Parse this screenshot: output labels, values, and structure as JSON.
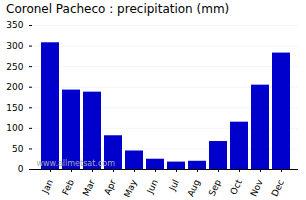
{
  "chart_data": {
    "type": "bar",
    "title": "Coronel Pacheco : precipitation (mm)",
    "categories": [
      "Jan",
      "Feb",
      "Mar",
      "Apr",
      "May",
      "Jun",
      "Jul",
      "Aug",
      "Sep",
      "Oct",
      "Nov",
      "Dec"
    ],
    "values": [
      308,
      193,
      188,
      82,
      45,
      25,
      18,
      20,
      68,
      115,
      205,
      283
    ],
    "color": "#0000cc",
    "ylim": [
      0,
      350
    ],
    "yticks": [
      0,
      50,
      100,
      150,
      200,
      250,
      300,
      350
    ],
    "grid": true,
    "annotations": [
      "www.allmetsat.com"
    ]
  }
}
